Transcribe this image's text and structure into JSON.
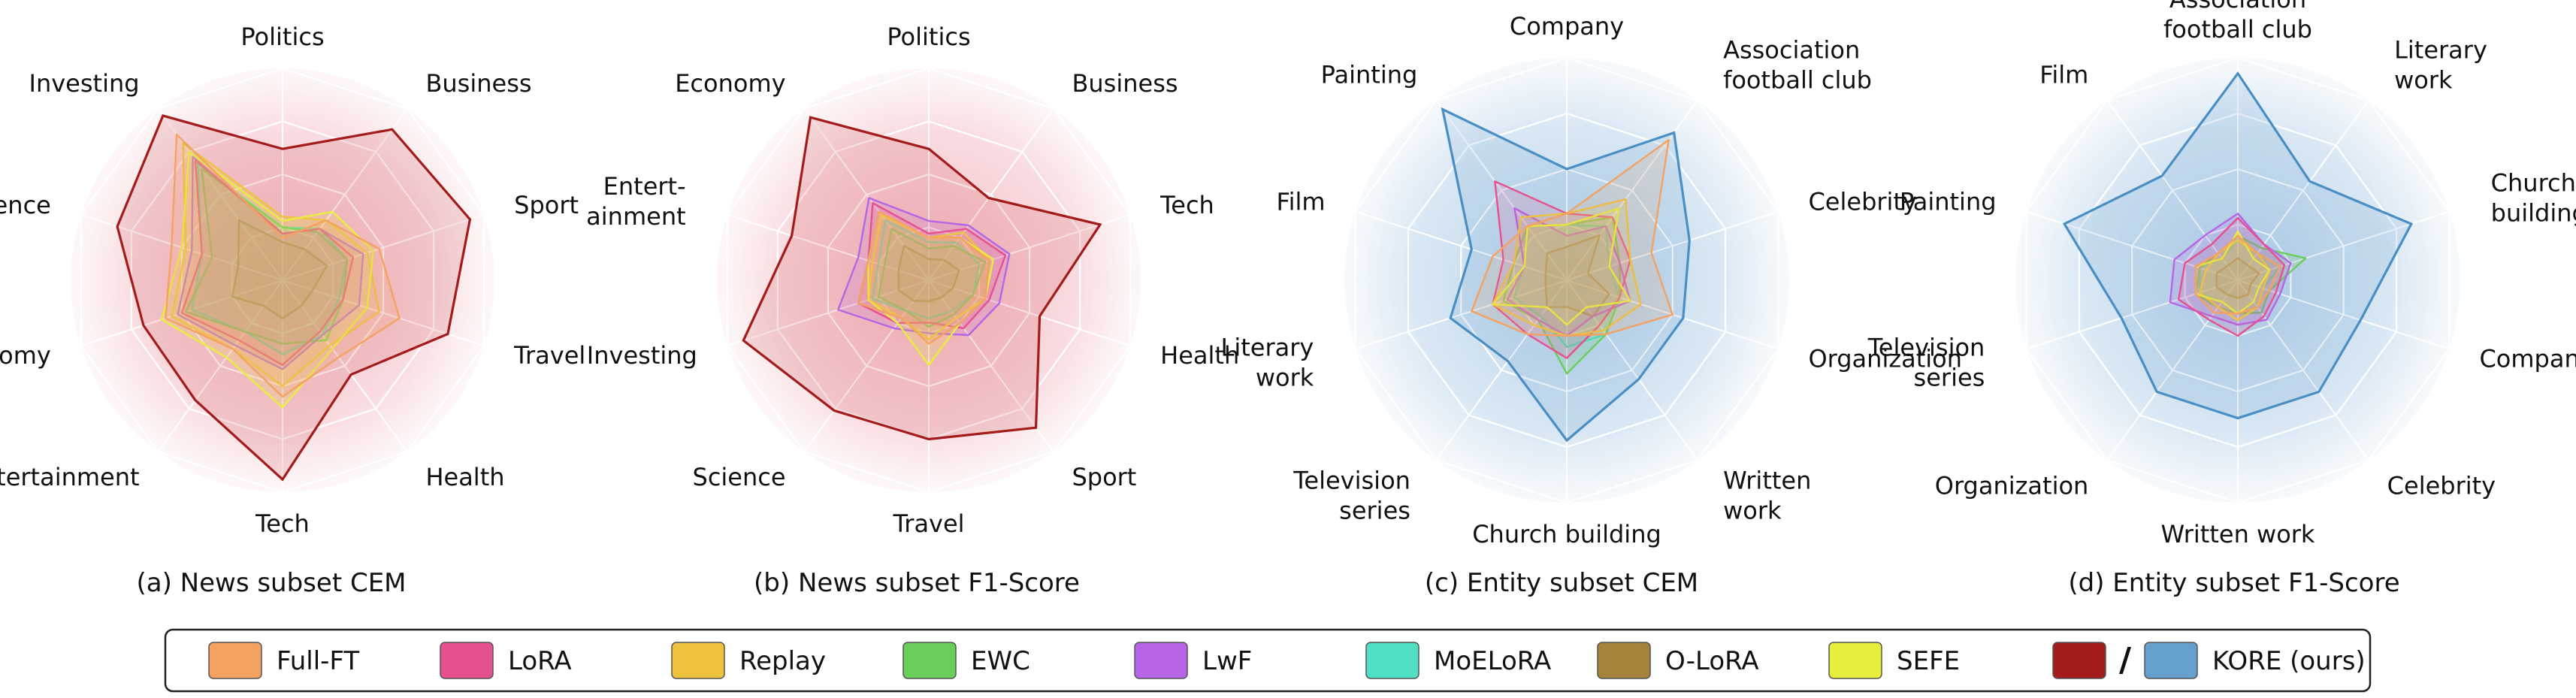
{
  "colors": {
    "Full-FT": "#f4a261",
    "LoRA": "#e6508f",
    "Replay": "#efc23d",
    "EWC": "#69cf5a",
    "LwF": "#b765e6",
    "MoELoRA": "#4fdfc2",
    "O-LoRA": "#a5833b",
    "SEFE": "#e8ee3c",
    "KORE (ours) news": "#a31b1b",
    "KORE (ours) entity": "#4a8fc4",
    "bg news": "#f6c8cd",
    "bg entity": "#b9d3e8"
  },
  "legend": {
    "items": [
      {
        "label": "Full-FT",
        "color": "#f4a261"
      },
      {
        "label": "LoRA",
        "color": "#e6508f"
      },
      {
        "label": "Replay",
        "color": "#efc23d"
      },
      {
        "label": "EWC",
        "color": "#69cf5a"
      },
      {
        "label": "LwF",
        "color": "#b765e6"
      },
      {
        "label": "MoELoRA",
        "color": "#4fdfc2"
      },
      {
        "label": "O-LoRA",
        "color": "#a5833b"
      },
      {
        "label": "SEFE",
        "color": "#e8ee3c"
      }
    ],
    "kore_separator": "/",
    "kore_label": "KORE (ours)"
  },
  "chart_data": [
    {
      "type": "radar",
      "title": "(a) News subset CEM",
      "theme": "news",
      "axes": [
        "Politics",
        "Business",
        "Sport",
        "Travel",
        "Health",
        "Tech",
        "Entertainment",
        "Economy",
        "Science",
        "Investing"
      ],
      "range": [
        0,
        1
      ],
      "series": [
        {
          "name": "KORE (ours)",
          "values": [
            0.62,
            0.88,
            0.93,
            0.82,
            0.55,
            0.94,
            0.7,
            0.69,
            0.82,
            0.96
          ]
        },
        {
          "name": "Full-FT",
          "values": [
            0.2,
            0.35,
            0.48,
            0.58,
            0.45,
            0.55,
            0.4,
            0.58,
            0.55,
            0.85
          ]
        },
        {
          "name": "LoRA",
          "values": [
            0.22,
            0.3,
            0.35,
            0.3,
            0.3,
            0.4,
            0.35,
            0.5,
            0.4,
            0.7
          ]
        },
        {
          "name": "Replay",
          "values": [
            0.3,
            0.35,
            0.42,
            0.48,
            0.38,
            0.5,
            0.4,
            0.55,
            0.48,
            0.8
          ]
        },
        {
          "name": "EWC",
          "values": [
            0.25,
            0.28,
            0.32,
            0.3,
            0.35,
            0.3,
            0.3,
            0.48,
            0.35,
            0.65
          ]
        },
        {
          "name": "LwF",
          "values": [
            0.22,
            0.3,
            0.4,
            0.38,
            0.32,
            0.42,
            0.38,
            0.52,
            0.45,
            0.72
          ]
        },
        {
          "name": "MoELoRA",
          "values": [
            0.25,
            0.3,
            0.32,
            0.28,
            0.32,
            0.35,
            0.3,
            0.45,
            0.4,
            0.68
          ]
        },
        {
          "name": "O-LoRA",
          "values": [
            0.18,
            0.18,
            0.22,
            0.15,
            0.15,
            0.18,
            0.15,
            0.25,
            0.22,
            0.35
          ]
        },
        {
          "name": "SEFE",
          "values": [
            0.28,
            0.4,
            0.45,
            0.42,
            0.4,
            0.6,
            0.45,
            0.6,
            0.5,
            0.75
          ]
        }
      ]
    },
    {
      "type": "radar",
      "title": "(b) News subset F1-Score",
      "theme": "news",
      "axes": [
        "Politics",
        "Business",
        "Tech",
        "Health",
        "Sport",
        "Travel",
        "Science",
        "Investing",
        "Entertainment",
        "Economy"
      ],
      "range": [
        0,
        1
      ],
      "series": [
        {
          "name": "KORE (ours)",
          "values": [
            0.62,
            0.48,
            0.85,
            0.55,
            0.86,
            0.75,
            0.76,
            0.92,
            0.68,
            0.95
          ]
        },
        {
          "name": "Full-FT",
          "values": [
            0.2,
            0.25,
            0.3,
            0.28,
            0.25,
            0.3,
            0.22,
            0.35,
            0.3,
            0.4
          ]
        },
        {
          "name": "LoRA",
          "values": [
            0.22,
            0.3,
            0.38,
            0.3,
            0.28,
            0.2,
            0.25,
            0.35,
            0.3,
            0.45
          ]
        },
        {
          "name": "Replay",
          "values": [
            0.2,
            0.28,
            0.3,
            0.28,
            0.22,
            0.28,
            0.22,
            0.3,
            0.28,
            0.38
          ]
        },
        {
          "name": "EWC",
          "values": [
            0.15,
            0.2,
            0.28,
            0.22,
            0.2,
            0.22,
            0.18,
            0.25,
            0.22,
            0.3
          ]
        },
        {
          "name": "LwF",
          "values": [
            0.28,
            0.32,
            0.4,
            0.35,
            0.32,
            0.25,
            0.28,
            0.45,
            0.35,
            0.48
          ]
        },
        {
          "name": "MoELoRA",
          "values": [
            0.18,
            0.22,
            0.25,
            0.22,
            0.18,
            0.18,
            0.18,
            0.28,
            0.25,
            0.35
          ]
        },
        {
          "name": "O-LoRA",
          "values": [
            0.1,
            0.12,
            0.15,
            0.12,
            0.1,
            0.1,
            0.12,
            0.15,
            0.15,
            0.2
          ]
        },
        {
          "name": "SEFE",
          "values": [
            0.2,
            0.25,
            0.32,
            0.28,
            0.25,
            0.4,
            0.25,
            0.3,
            0.3,
            0.4
          ]
        }
      ]
    },
    {
      "type": "radar",
      "title": "(c) Entity subset CEM",
      "theme": "entity",
      "axes": [
        "Company",
        "Association football club",
        "Celebrity",
        "Organization",
        "Written work",
        "Church building",
        "Television series",
        "Literary work",
        "Film",
        "Painting"
      ],
      "range": [
        0,
        1
      ],
      "series": [
        {
          "name": "KORE (ours)",
          "values": [
            0.5,
            0.82,
            0.58,
            0.55,
            0.55,
            0.72,
            0.45,
            0.55,
            0.45,
            0.95
          ]
        },
        {
          "name": "Full-FT",
          "values": [
            0.3,
            0.78,
            0.4,
            0.5,
            0.3,
            0.25,
            0.3,
            0.45,
            0.35,
            0.3
          ]
        },
        {
          "name": "LoRA",
          "values": [
            0.3,
            0.35,
            0.3,
            0.25,
            0.25,
            0.35,
            0.3,
            0.35,
            0.3,
            0.55
          ]
        },
        {
          "name": "Replay",
          "values": [
            0.3,
            0.45,
            0.3,
            0.35,
            0.28,
            0.25,
            0.25,
            0.35,
            0.25,
            0.35
          ]
        },
        {
          "name": "EWC",
          "values": [
            0.25,
            0.35,
            0.25,
            0.25,
            0.3,
            0.42,
            0.22,
            0.3,
            0.25,
            0.3
          ]
        },
        {
          "name": "LwF",
          "values": [
            0.2,
            0.3,
            0.25,
            0.3,
            0.2,
            0.25,
            0.22,
            0.28,
            0.2,
            0.4
          ]
        },
        {
          "name": "MoELoRA",
          "values": [
            0.25,
            0.3,
            0.2,
            0.25,
            0.3,
            0.3,
            0.2,
            0.25,
            0.2,
            0.3
          ]
        },
        {
          "name": "O-LoRA",
          "values": [
            0.15,
            0.25,
            0.1,
            0.2,
            0.2,
            0.12,
            0.15,
            0.1,
            0.1,
            0.15
          ]
        },
        {
          "name": "SEFE",
          "values": [
            0.25,
            0.4,
            0.2,
            0.3,
            0.15,
            0.2,
            0.15,
            0.35,
            0.2,
            0.3
          ]
        }
      ]
    },
    {
      "type": "radar",
      "title": "(d) Entity subset F1-Score",
      "theme": "entity",
      "axes": [
        "Association football club",
        "Literary work",
        "Church building",
        "Company",
        "Celebrity",
        "Written work",
        "Organization",
        "Television series",
        "Painting",
        "Film"
      ],
      "range": [
        0,
        1
      ],
      "series": [
        {
          "name": "KORE (ours)",
          "values": [
            0.93,
            0.55,
            0.82,
            0.58,
            0.62,
            0.62,
            0.62,
            0.55,
            0.82,
            0.58
          ]
        },
        {
          "name": "Full-FT",
          "values": [
            0.2,
            0.15,
            0.2,
            0.15,
            0.15,
            0.15,
            0.18,
            0.2,
            0.2,
            0.15
          ]
        },
        {
          "name": "LoRA",
          "values": [
            0.28,
            0.2,
            0.22,
            0.18,
            0.2,
            0.25,
            0.22,
            0.28,
            0.25,
            0.2
          ]
        },
        {
          "name": "Replay",
          "values": [
            0.18,
            0.15,
            0.15,
            0.12,
            0.15,
            0.18,
            0.15,
            0.18,
            0.15,
            0.15
          ]
        },
        {
          "name": "EWC",
          "values": [
            0.2,
            0.18,
            0.32,
            0.15,
            0.18,
            0.15,
            0.15,
            0.2,
            0.18,
            0.15
          ]
        },
        {
          "name": "LwF",
          "values": [
            0.3,
            0.2,
            0.25,
            0.2,
            0.22,
            0.2,
            0.2,
            0.32,
            0.3,
            0.25
          ]
        },
        {
          "name": "MoELoRA",
          "values": [
            0.18,
            0.15,
            0.2,
            0.12,
            0.15,
            0.15,
            0.12,
            0.18,
            0.18,
            0.12
          ]
        },
        {
          "name": "O-LoRA",
          "values": [
            0.1,
            0.08,
            0.1,
            0.06,
            0.08,
            0.08,
            0.08,
            0.1,
            0.1,
            0.08
          ]
        },
        {
          "name": "SEFE",
          "values": [
            0.22,
            0.12,
            0.15,
            0.1,
            0.12,
            0.15,
            0.12,
            0.2,
            0.2,
            0.12
          ]
        }
      ]
    }
  ]
}
